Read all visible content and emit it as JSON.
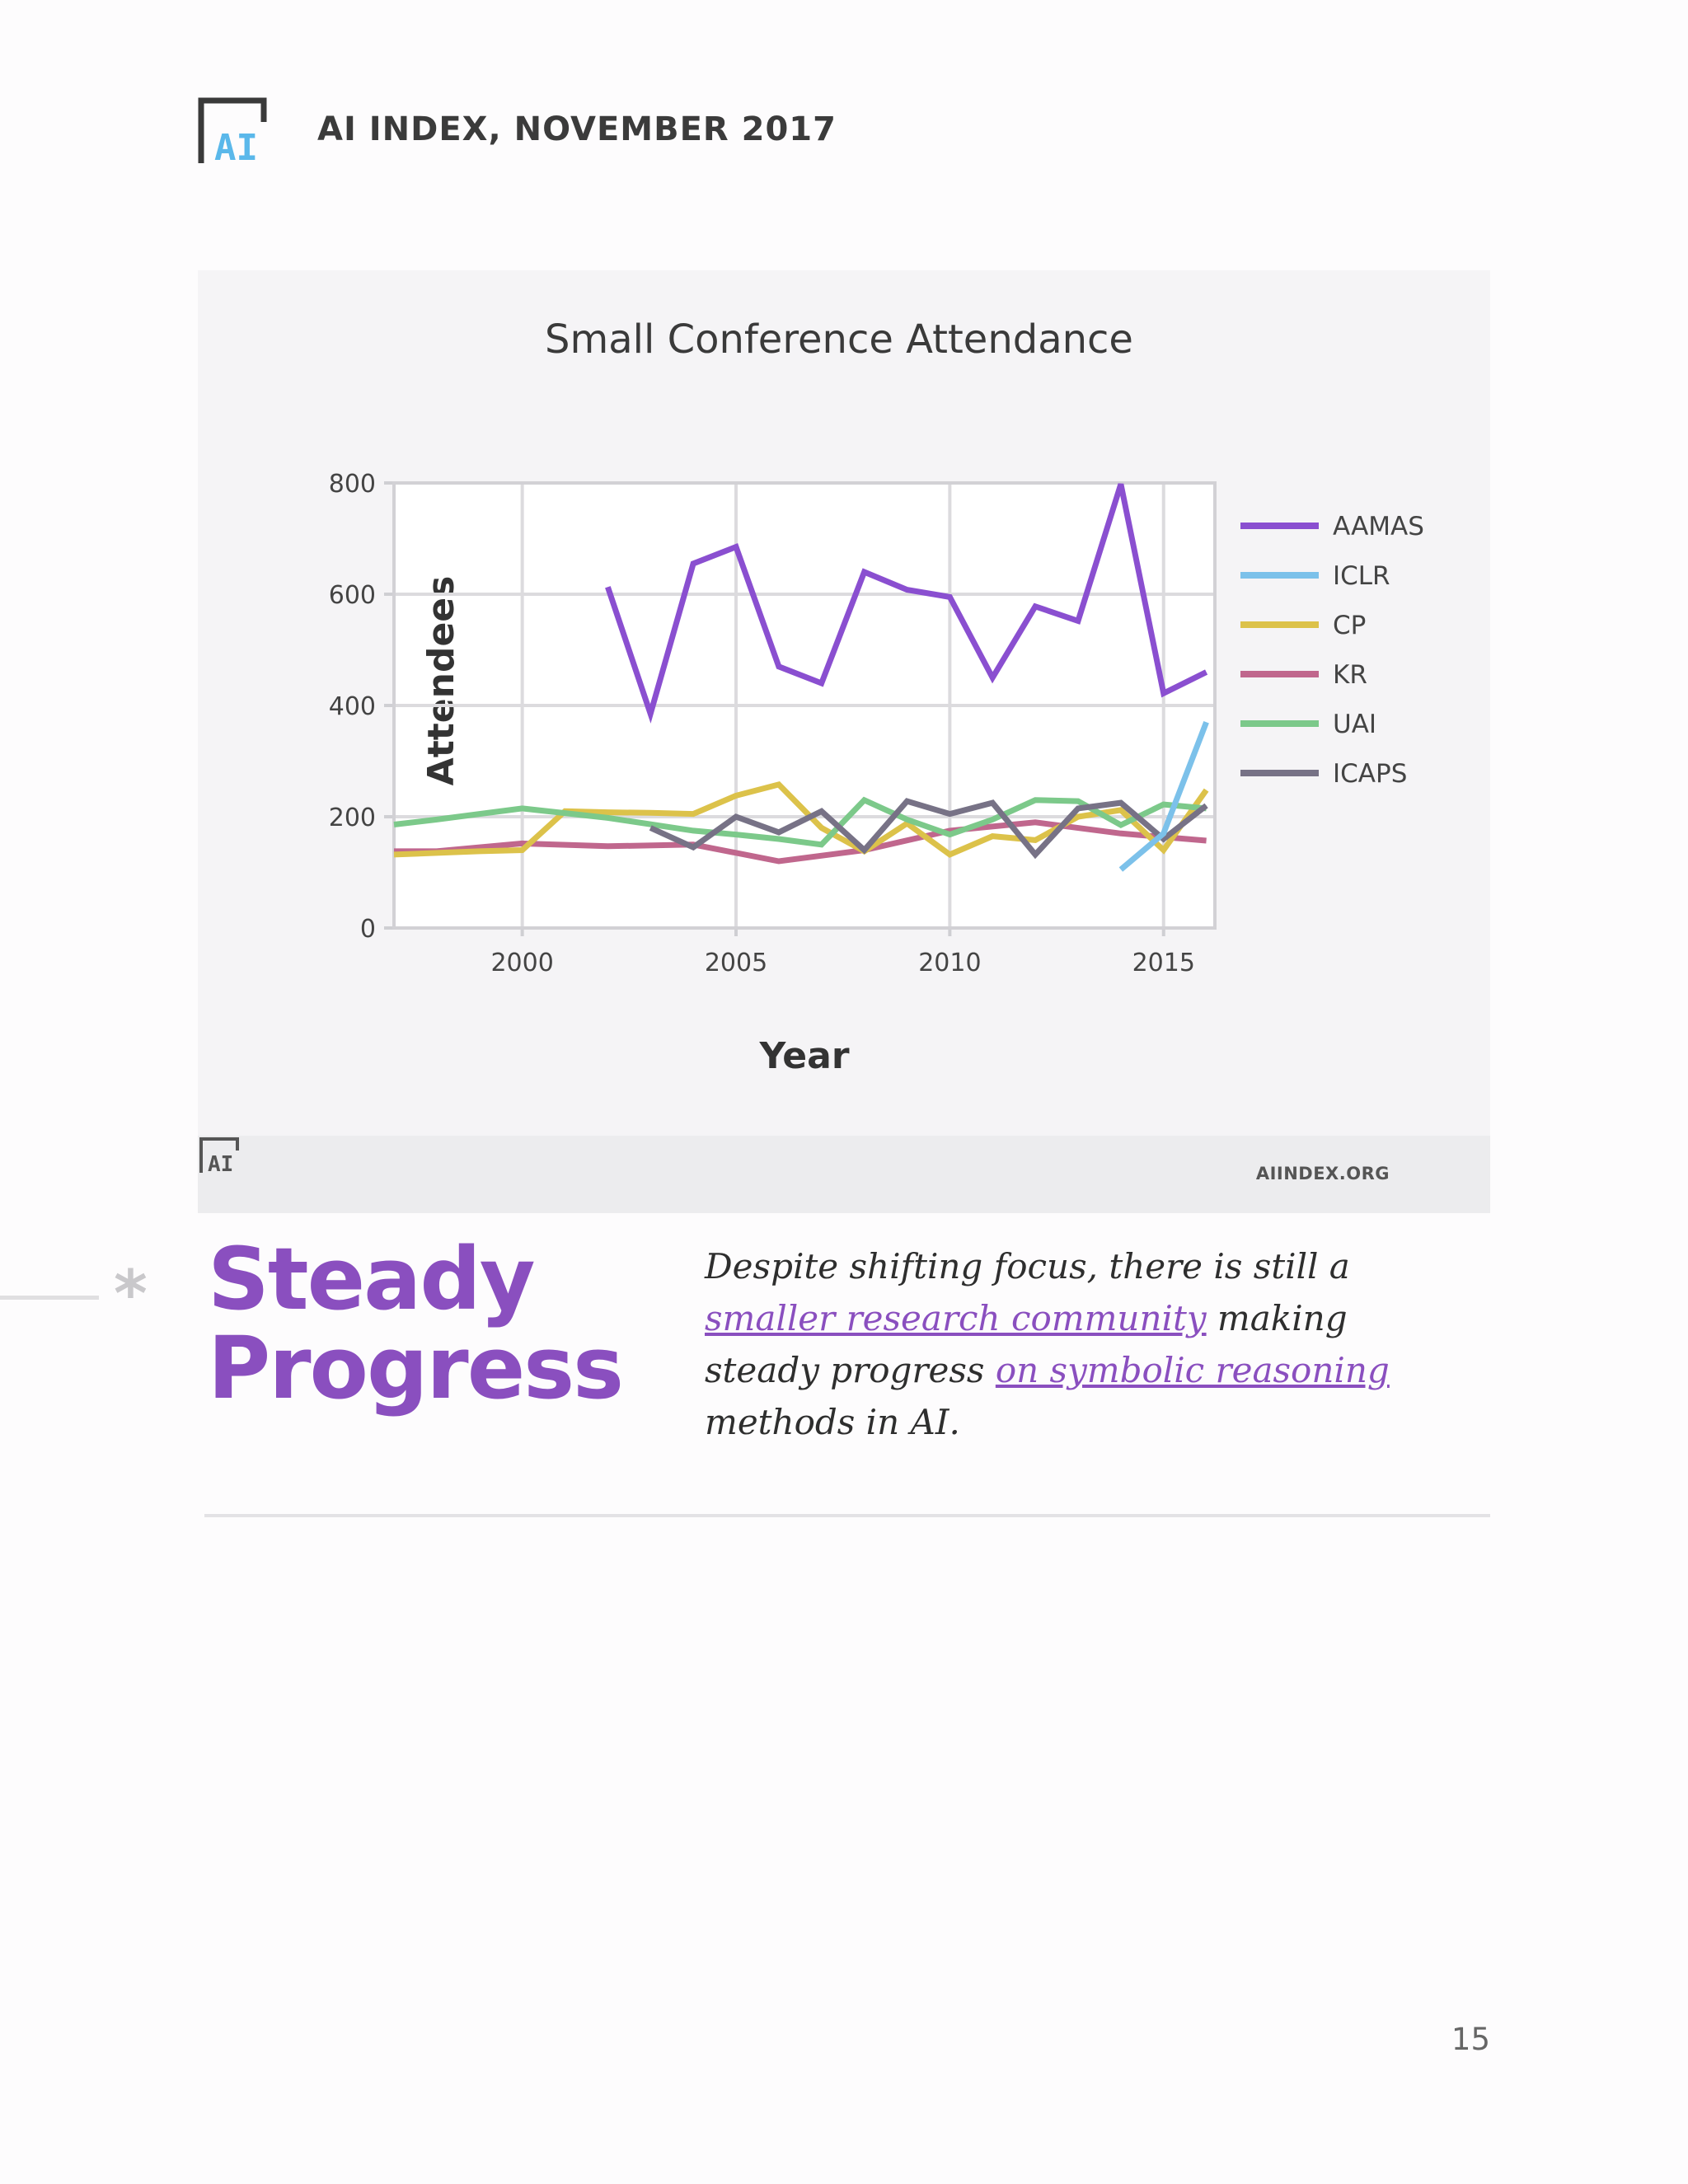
{
  "header": {
    "logo_text": "AI",
    "title": "AI INDEX, NOVEMBER 2017"
  },
  "chart_data": {
    "type": "line",
    "title": "Small Conference Attendance",
    "xlabel": "Year",
    "ylabel": "Attendees",
    "xlim": [
      1997,
      2016.2
    ],
    "ylim": [
      0,
      800
    ],
    "x_ticks": [
      2000,
      2005,
      2010,
      2015
    ],
    "y_ticks": [
      0,
      200,
      400,
      600,
      800
    ],
    "grid": true,
    "legend": "right",
    "series": [
      {
        "name": "AAMAS",
        "color": "#8a4fd0",
        "x": [
          2002,
          2003,
          2004,
          2005,
          2006,
          2007,
          2008,
          2009,
          2010,
          2011,
          2012,
          2013,
          2014,
          2015,
          2016
        ],
        "y": [
          613,
          385,
          655,
          685,
          470,
          440,
          640,
          608,
          595,
          450,
          578,
          552,
          798,
          422,
          460
        ]
      },
      {
        "name": "ICLR",
        "color": "#7cc1ea",
        "x": [
          2014,
          2015,
          2016
        ],
        "y": [
          105,
          170,
          370
        ]
      },
      {
        "name": "CP",
        "color": "#dcc24a",
        "x": [
          1997,
          1998,
          1999,
          2000,
          2001,
          2002,
          2003,
          2004,
          2005,
          2006,
          2007,
          2008,
          2009,
          2010,
          2011,
          2012,
          2013,
          2014,
          2015,
          2016
        ],
        "y": [
          132,
          135,
          138,
          140,
          210,
          208,
          207,
          205,
          238,
          258,
          180,
          138,
          188,
          132,
          165,
          158,
          200,
          212,
          140,
          248
        ]
      },
      {
        "name": "KR",
        "color": "#c0678d",
        "x": [
          1997,
          1998,
          2000,
          2002,
          2004,
          2006,
          2008,
          2010,
          2012,
          2014,
          2016
        ],
        "y": [
          138,
          138,
          152,
          147,
          150,
          120,
          140,
          175,
          190,
          170,
          157
        ]
      },
      {
        "name": "UAI",
        "color": "#7cc98a",
        "x": [
          1997,
          1998,
          2000,
          2002,
          2004,
          2005,
          2006,
          2007,
          2008,
          2009,
          2010,
          2011,
          2012,
          2013,
          2014,
          2015,
          2016
        ],
        "y": [
          186,
          195,
          215,
          198,
          175,
          168,
          160,
          150,
          230,
          195,
          168,
          195,
          230,
          228,
          185,
          222,
          215
        ]
      },
      {
        "name": "ICAPS",
        "color": "#777286",
        "x": [
          2003,
          2004,
          2005,
          2006,
          2007,
          2008,
          2009,
          2010,
          2011,
          2012,
          2013,
          2014,
          2015,
          2016
        ],
        "y": [
          180,
          145,
          200,
          172,
          210,
          140,
          228,
          205,
          225,
          132,
          215,
          225,
          160,
          220
        ]
      }
    ]
  },
  "footer": {
    "url": "AIINDEX.ORG"
  },
  "section": {
    "star": "*",
    "headline_line1": "Steady",
    "headline_line2": "Progress",
    "body_part1": "Despite shifting focus, there is still a ",
    "link1": "smaller research community",
    "body_part2": " making steady progress ",
    "link2": "on symbolic reasoning",
    "body_part3": " methods in AI."
  },
  "page": {
    "number": "15"
  },
  "colors": {
    "accent": "#8a4fbf",
    "logo_blue": "#5ab8ea",
    "logo_dark": "#3a3a3a"
  }
}
